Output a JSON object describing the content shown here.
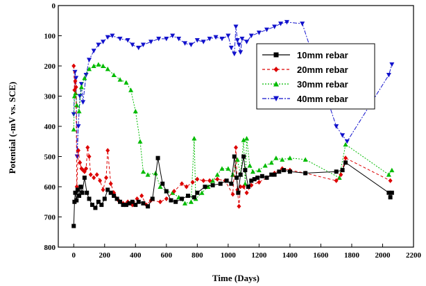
{
  "chart_data": {
    "type": "line",
    "xlabel": "Time (Days)",
    "ylabel": "Potential (-mV vs. SCE)",
    "xlim": [
      -100,
      2200
    ],
    "ylim": [
      0,
      800
    ],
    "y_inverted": true,
    "xticks": [
      0,
      200,
      400,
      600,
      800,
      1000,
      1200,
      1400,
      1600,
      1800,
      2000,
      2200
    ],
    "yticks": [
      0,
      100,
      200,
      300,
      400,
      500,
      600,
      700,
      800
    ],
    "grid": false,
    "legend_position": "top-right",
    "series": [
      {
        "name": "10mm  rebar",
        "color": "#000000",
        "marker": "square",
        "dash": "solid",
        "points": [
          [
            0,
            730
          ],
          [
            5,
            650
          ],
          [
            10,
            620
          ],
          [
            18,
            645
          ],
          [
            25,
            610
          ],
          [
            35,
            630
          ],
          [
            45,
            600
          ],
          [
            55,
            620
          ],
          [
            70,
            570
          ],
          [
            85,
            620
          ],
          [
            100,
            640
          ],
          [
            120,
            660
          ],
          [
            140,
            670
          ],
          [
            160,
            650
          ],
          [
            180,
            660
          ],
          [
            200,
            640
          ],
          [
            220,
            610
          ],
          [
            240,
            620
          ],
          [
            260,
            630
          ],
          [
            280,
            640
          ],
          [
            300,
            650
          ],
          [
            320,
            660
          ],
          [
            340,
            660
          ],
          [
            360,
            655
          ],
          [
            380,
            650
          ],
          [
            400,
            660
          ],
          [
            420,
            650
          ],
          [
            450,
            655
          ],
          [
            480,
            665
          ],
          [
            510,
            640
          ],
          [
            545,
            505
          ],
          [
            575,
            590
          ],
          [
            600,
            615
          ],
          [
            630,
            645
          ],
          [
            660,
            650
          ],
          [
            700,
            640
          ],
          [
            740,
            630
          ],
          [
            780,
            635
          ],
          [
            800,
            620
          ],
          [
            850,
            600
          ],
          [
            900,
            595
          ],
          [
            950,
            590
          ],
          [
            990,
            580
          ],
          [
            1020,
            590
          ],
          [
            1040,
            500
          ],
          [
            1055,
            570
          ],
          [
            1065,
            620
          ],
          [
            1080,
            560
          ],
          [
            1100,
            500
          ],
          [
            1110,
            545
          ],
          [
            1130,
            600
          ],
          [
            1150,
            580
          ],
          [
            1170,
            575
          ],
          [
            1190,
            570
          ],
          [
            1220,
            565
          ],
          [
            1250,
            570
          ],
          [
            1280,
            560
          ],
          [
            1300,
            560
          ],
          [
            1330,
            550
          ],
          [
            1360,
            545
          ],
          [
            1400,
            550
          ],
          [
            1500,
            555
          ],
          [
            1700,
            550
          ],
          [
            1740,
            545
          ],
          [
            1760,
            520
          ],
          [
            2040,
            620
          ],
          [
            2050,
            635
          ],
          [
            2060,
            620
          ]
        ]
      },
      {
        "name": "20mm  rebar",
        "color": "#dd0000",
        "marker": "diamond",
        "dash": "4 3",
        "points": [
          [
            0,
            200
          ],
          [
            5,
            280
          ],
          [
            10,
            250
          ],
          [
            15,
            270
          ],
          [
            20,
            600
          ],
          [
            30,
            480
          ],
          [
            40,
            520
          ],
          [
            50,
            540
          ],
          [
            60,
            545
          ],
          [
            70,
            550
          ],
          [
            80,
            540
          ],
          [
            90,
            470
          ],
          [
            100,
            500
          ],
          [
            110,
            560
          ],
          [
            130,
            570
          ],
          [
            150,
            560
          ],
          [
            170,
            580
          ],
          [
            190,
            610
          ],
          [
            210,
            570
          ],
          [
            220,
            480
          ],
          [
            240,
            590
          ],
          [
            260,
            620
          ],
          [
            290,
            645
          ],
          [
            320,
            655
          ],
          [
            350,
            650
          ],
          [
            380,
            660
          ],
          [
            410,
            640
          ],
          [
            440,
            630
          ],
          [
            470,
            660
          ],
          [
            500,
            645
          ],
          [
            560,
            650
          ],
          [
            600,
            640
          ],
          [
            650,
            615
          ],
          [
            700,
            590
          ],
          [
            730,
            600
          ],
          [
            770,
            585
          ],
          [
            800,
            575
          ],
          [
            840,
            580
          ],
          [
            880,
            580
          ],
          [
            930,
            575
          ],
          [
            980,
            580
          ],
          [
            1030,
            625
          ],
          [
            1050,
            470
          ],
          [
            1060,
            610
          ],
          [
            1070,
            665
          ],
          [
            1080,
            600
          ],
          [
            1100,
            600
          ],
          [
            1120,
            620
          ],
          [
            1150,
            595
          ],
          [
            1200,
            585
          ],
          [
            1250,
            570
          ],
          [
            1300,
            555
          ],
          [
            1350,
            540
          ],
          [
            1400,
            545
          ],
          [
            1500,
            555
          ],
          [
            1700,
            580
          ],
          [
            1730,
            560
          ],
          [
            1760,
            505
          ],
          [
            2050,
            580
          ]
        ]
      },
      {
        "name": "30mm  rebar",
        "color": "#00bb00",
        "marker": "triangle-up",
        "dash": "2 2",
        "points": [
          [
            0,
            410
          ],
          [
            5,
            300
          ],
          [
            12,
            290
          ],
          [
            20,
            330
          ],
          [
            35,
            350
          ],
          [
            50,
            270
          ],
          [
            70,
            240
          ],
          [
            100,
            210
          ],
          [
            130,
            200
          ],
          [
            160,
            195
          ],
          [
            190,
            200
          ],
          [
            220,
            210
          ],
          [
            260,
            230
          ],
          [
            300,
            245
          ],
          [
            340,
            255
          ],
          [
            370,
            280
          ],
          [
            400,
            350
          ],
          [
            430,
            450
          ],
          [
            450,
            550
          ],
          [
            480,
            560
          ],
          [
            530,
            555
          ],
          [
            560,
            600
          ],
          [
            600,
            615
          ],
          [
            640,
            620
          ],
          [
            680,
            635
          ],
          [
            720,
            655
          ],
          [
            760,
            650
          ],
          [
            780,
            440
          ],
          [
            790,
            640
          ],
          [
            830,
            620
          ],
          [
            870,
            600
          ],
          [
            900,
            580
          ],
          [
            930,
            560
          ],
          [
            960,
            540
          ],
          [
            1000,
            540
          ],
          [
            1030,
            560
          ],
          [
            1060,
            510
          ],
          [
            1080,
            560
          ],
          [
            1100,
            445
          ],
          [
            1110,
            590
          ],
          [
            1120,
            440
          ],
          [
            1140,
            530
          ],
          [
            1160,
            550
          ],
          [
            1200,
            545
          ],
          [
            1240,
            530
          ],
          [
            1280,
            520
          ],
          [
            1310,
            505
          ],
          [
            1350,
            510
          ],
          [
            1400,
            505
          ],
          [
            1500,
            510
          ],
          [
            1720,
            570
          ],
          [
            1760,
            460
          ],
          [
            2040,
            560
          ],
          [
            2060,
            545
          ]
        ]
      },
      {
        "name": "40mm  rebar",
        "color": "#1111cc",
        "marker": "triangle-down",
        "dash": "6 2 2 2",
        "points": [
          [
            0,
            360
          ],
          [
            8,
            220
          ],
          [
            15,
            240
          ],
          [
            22,
            500
          ],
          [
            30,
            400
          ],
          [
            40,
            300
          ],
          [
            50,
            260
          ],
          [
            60,
            320
          ],
          [
            80,
            230
          ],
          [
            100,
            180
          ],
          [
            130,
            150
          ],
          [
            160,
            130
          ],
          [
            190,
            120
          ],
          [
            220,
            105
          ],
          [
            250,
            100
          ],
          [
            300,
            110
          ],
          [
            350,
            115
          ],
          [
            380,
            130
          ],
          [
            420,
            140
          ],
          [
            450,
            130
          ],
          [
            500,
            120
          ],
          [
            550,
            110
          ],
          [
            600,
            110
          ],
          [
            640,
            100
          ],
          [
            680,
            110
          ],
          [
            720,
            125
          ],
          [
            760,
            130
          ],
          [
            800,
            115
          ],
          [
            840,
            120
          ],
          [
            880,
            110
          ],
          [
            920,
            105
          ],
          [
            960,
            110
          ],
          [
            1000,
            100
          ],
          [
            1020,
            140
          ],
          [
            1040,
            160
          ],
          [
            1050,
            70
          ],
          [
            1060,
            115
          ],
          [
            1070,
            130
          ],
          [
            1080,
            155
          ],
          [
            1090,
            110
          ],
          [
            1120,
            120
          ],
          [
            1150,
            100
          ],
          [
            1200,
            90
          ],
          [
            1250,
            80
          ],
          [
            1300,
            70
          ],
          [
            1340,
            60
          ],
          [
            1380,
            55
          ],
          [
            1480,
            60
          ],
          [
            1700,
            400
          ],
          [
            1740,
            430
          ],
          [
            1770,
            450
          ],
          [
            2040,
            230
          ],
          [
            2060,
            195
          ]
        ]
      }
    ]
  }
}
